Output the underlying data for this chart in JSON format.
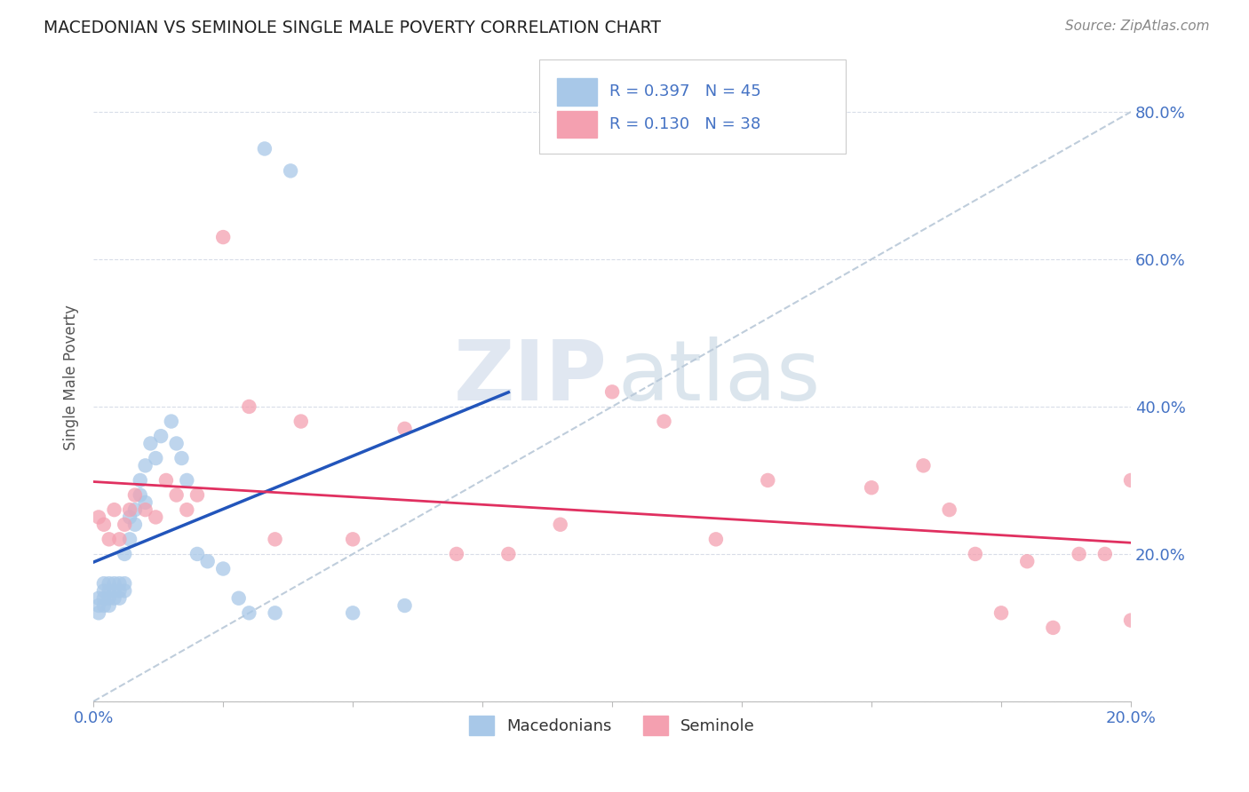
{
  "title": "MACEDONIAN VS SEMINOLE SINGLE MALE POVERTY CORRELATION CHART",
  "source": "Source: ZipAtlas.com",
  "ylabel": "Single Male Poverty",
  "xlim": [
    0,
    0.2
  ],
  "ylim": [
    0,
    0.88
  ],
  "ytick_values": [
    0.0,
    0.2,
    0.4,
    0.6,
    0.8
  ],
  "ytick_labels": [
    "",
    "20.0%",
    "40.0%",
    "60.0%",
    "80.0%"
  ],
  "xtick_values": [
    0.0,
    0.025,
    0.05,
    0.075,
    0.1,
    0.125,
    0.15,
    0.175,
    0.2
  ],
  "legend_labels": [
    "R = 0.397   N = 45",
    "R = 0.130   N = 38"
  ],
  "legend_xlabel": [
    "Macedonians",
    "Seminole"
  ],
  "blue_scatter": "#a8c8e8",
  "pink_scatter": "#f4a0b0",
  "blue_line": "#2255bb",
  "pink_line": "#e03060",
  "diagonal_color": "#b8c8d8",
  "grid_color": "#d8dde8",
  "mac_x": [
    0.001,
    0.001,
    0.001,
    0.002,
    0.002,
    0.002,
    0.002,
    0.003,
    0.003,
    0.003,
    0.003,
    0.004,
    0.004,
    0.004,
    0.005,
    0.005,
    0.005,
    0.006,
    0.006,
    0.006,
    0.007,
    0.007,
    0.008,
    0.008,
    0.009,
    0.009,
    0.01,
    0.01,
    0.011,
    0.012,
    0.013,
    0.015,
    0.016,
    0.017,
    0.018,
    0.02,
    0.022,
    0.025,
    0.028,
    0.03,
    0.033,
    0.035,
    0.038,
    0.05,
    0.06
  ],
  "mac_y": [
    0.12,
    0.13,
    0.14,
    0.13,
    0.14,
    0.15,
    0.16,
    0.13,
    0.14,
    0.15,
    0.16,
    0.14,
    0.15,
    0.16,
    0.14,
    0.15,
    0.16,
    0.15,
    0.16,
    0.2,
    0.22,
    0.25,
    0.24,
    0.26,
    0.28,
    0.3,
    0.27,
    0.32,
    0.35,
    0.33,
    0.36,
    0.38,
    0.35,
    0.33,
    0.3,
    0.2,
    0.19,
    0.18,
    0.14,
    0.12,
    0.75,
    0.12,
    0.72,
    0.12,
    0.13
  ],
  "sem_x": [
    0.001,
    0.002,
    0.003,
    0.004,
    0.005,
    0.006,
    0.007,
    0.008,
    0.01,
    0.012,
    0.014,
    0.016,
    0.018,
    0.02,
    0.025,
    0.03,
    0.035,
    0.04,
    0.05,
    0.06,
    0.07,
    0.08,
    0.09,
    0.1,
    0.11,
    0.12,
    0.13,
    0.15,
    0.16,
    0.165,
    0.17,
    0.175,
    0.18,
    0.185,
    0.19,
    0.195,
    0.2,
    0.2
  ],
  "sem_y": [
    0.25,
    0.24,
    0.22,
    0.26,
    0.22,
    0.24,
    0.26,
    0.28,
    0.26,
    0.25,
    0.3,
    0.28,
    0.26,
    0.28,
    0.63,
    0.4,
    0.22,
    0.38,
    0.22,
    0.37,
    0.2,
    0.2,
    0.24,
    0.42,
    0.38,
    0.22,
    0.3,
    0.29,
    0.32,
    0.26,
    0.2,
    0.12,
    0.19,
    0.1,
    0.2,
    0.2,
    0.11,
    0.3
  ]
}
